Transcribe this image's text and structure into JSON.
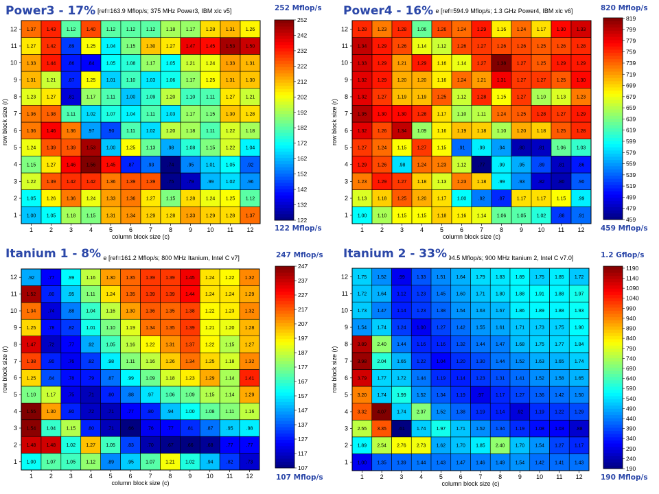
{
  "panels": [
    {
      "title": "Power3 - 17%",
      "subtitle": "rofile [ref=163.9 Mflop/s; 375 MHz Power3, IBM xlc v5]",
      "top_label": "252 Mflop/s",
      "bottom_label": "122 Mflop/s"
    },
    {
      "title": "Power4 - 16%",
      "subtitle": "rofile [ref=594.9 Mflop/s; 1.3 GHz Power4, IBM xlc v6]",
      "top_label": "820 Mflop/s",
      "bottom_label": "459 Mflop/s"
    },
    {
      "title": "Itanium 1 - 8%",
      "subtitle": "rofile [ref=161.2 Mflop/s; 800 MHz Itanium, Intel C v7]",
      "top_label": "247 Mflop/s",
      "bottom_label": "107 Mflop/s"
    },
    {
      "title": "Itanium 2 - 33%",
      "subtitle": "ref=294.5 Mflop/s; 900 MHz Itanium 2, Intel C v7.0]",
      "top_label": "1.2 Gflop/s",
      "bottom_label": "190 Mflop/s"
    }
  ],
  "chart_data": [
    {
      "type": "heatmap",
      "title": "Power3 - 17%",
      "xlabel": "column block size (c)",
      "ylabel": "row block size (r)",
      "x": [
        1,
        2,
        3,
        4,
        5,
        6,
        7,
        8,
        9,
        10,
        11,
        12
      ],
      "y": [
        1,
        2,
        3,
        4,
        5,
        6,
        7,
        8,
        9,
        10,
        11,
        12
      ],
      "colorbar_ticks": [
        122,
        132,
        142,
        152,
        162,
        172,
        182,
        192,
        202,
        212,
        222,
        232,
        242,
        252
      ],
      "colorbar_range": [
        122,
        252
      ],
      "values": [
        [
          1.0,
          1.05,
          1.18,
          1.15,
          1.31,
          1.34,
          1.29,
          1.28,
          1.33,
          1.29,
          1.28,
          1.37
        ],
        [
          1.05,
          1.26,
          1.36,
          1.24,
          1.33,
          1.36,
          1.27,
          1.15,
          1.28,
          1.24,
          1.25,
          1.12
        ],
        [
          1.22,
          1.39,
          1.42,
          1.42,
          1.36,
          1.39,
          1.39,
          0.75,
          0.79,
          0.99,
          1.02,
          0.96
        ],
        [
          1.15,
          1.27,
          1.46,
          1.56,
          1.45,
          0.87,
          0.93,
          0.74,
          0.95,
          1.01,
          1.05,
          0.92
        ],
        [
          1.24,
          1.39,
          1.39,
          1.53,
          1.0,
          1.25,
          1.13,
          0.98,
          1.08,
          1.15,
          1.22,
          1.04
        ],
        [
          1.36,
          1.46,
          1.36,
          0.97,
          0.9,
          1.11,
          1.02,
          1.2,
          1.18,
          1.11,
          1.22,
          1.18
        ],
        [
          1.36,
          1.38,
          1.11,
          1.02,
          1.07,
          1.04,
          1.11,
          1.03,
          1.17,
          1.15,
          1.3,
          1.28
        ],
        [
          1.23,
          1.27,
          0.81,
          1.17,
          1.11,
          1.0,
          1.09,
          1.2,
          1.1,
          1.11,
          1.27,
          1.21
        ],
        [
          1.31,
          1.21,
          0.87,
          1.25,
          1.01,
          1.1,
          1.03,
          1.06,
          1.17,
          1.25,
          1.31,
          1.3
        ],
        [
          1.33,
          1.44,
          0.86,
          0.84,
          1.05,
          1.08,
          1.17,
          1.05,
          1.21,
          1.24,
          1.33,
          1.31
        ],
        [
          1.27,
          1.42,
          0.89,
          1.25,
          1.04,
          1.15,
          1.3,
          1.27,
          1.47,
          1.45,
          1.53,
          1.5
        ],
        [
          1.37,
          1.43,
          1.12,
          1.4,
          1.12,
          1.12,
          1.12,
          1.18,
          1.17,
          1.28,
          1.31,
          1.26
        ]
      ]
    },
    {
      "type": "heatmap",
      "title": "Power4 - 16%",
      "xlabel": "column block size (c)",
      "ylabel": "row block size (r)",
      "x": [
        1,
        2,
        3,
        4,
        5,
        6,
        7,
        8,
        9,
        10,
        11,
        12
      ],
      "y": [
        1,
        2,
        3,
        4,
        5,
        6,
        7,
        8,
        9,
        10,
        11,
        12
      ],
      "colorbar_ticks": [
        459,
        479,
        499,
        519,
        539,
        559,
        579,
        599,
        619,
        639,
        659,
        679,
        699,
        719,
        739,
        759,
        779,
        799,
        819
      ],
      "colorbar_range": [
        459,
        820
      ],
      "values": [
        [
          1.0,
          1.1,
          1.15,
          1.15,
          1.18,
          1.16,
          1.14,
          1.06,
          1.05,
          1.02,
          0.88,
          0.91
        ],
        [
          1.13,
          1.18,
          1.25,
          1.2,
          1.17,
          1.0,
          0.92,
          0.87,
          1.17,
          1.17,
          1.15,
          0.99
        ],
        [
          1.23,
          1.29,
          1.27,
          1.18,
          1.13,
          1.23,
          1.18,
          0.99,
          0.93,
          0.82,
          0.8,
          0.9
        ],
        [
          1.29,
          1.26,
          0.98,
          1.24,
          1.23,
          1.12,
          0.77,
          0.99,
          0.95,
          0.89,
          0.81,
          0.86
        ],
        [
          1.27,
          1.24,
          1.15,
          1.27,
          1.15,
          0.91,
          0.99,
          0.94,
          0.8,
          0.81,
          1.06,
          1.03
        ],
        [
          1.32,
          1.26,
          1.34,
          1.09,
          1.16,
          1.19,
          1.18,
          1.1,
          1.2,
          1.18,
          1.25,
          1.28
        ],
        [
          1.35,
          1.3,
          1.3,
          1.28,
          1.17,
          1.1,
          1.11,
          1.24,
          1.25,
          1.28,
          1.27,
          1.29
        ],
        [
          1.32,
          1.27,
          1.19,
          1.19,
          1.25,
          1.12,
          1.28,
          1.15,
          1.27,
          1.1,
          1.13,
          1.23
        ],
        [
          1.32,
          1.29,
          1.2,
          1.2,
          1.16,
          1.24,
          1.21,
          1.31,
          1.27,
          1.27,
          1.25,
          1.3
        ],
        [
          1.33,
          1.29,
          1.21,
          1.29,
          1.16,
          1.14,
          1.27,
          1.38,
          1.27,
          1.25,
          1.29,
          1.29
        ],
        [
          1.34,
          1.29,
          1.26,
          1.14,
          1.12,
          1.26,
          1.27,
          1.26,
          1.26,
          1.25,
          1.26,
          1.28
        ],
        [
          1.28,
          1.23,
          1.28,
          1.06,
          1.26,
          1.24,
          1.29,
          1.16,
          1.24,
          1.17,
          1.3,
          1.33
        ]
      ]
    },
    {
      "type": "heatmap",
      "title": "Itanium 1 - 8%",
      "xlabel": "column block size (c)",
      "ylabel": "row block size (r)",
      "x": [
        1,
        2,
        3,
        4,
        5,
        6,
        7,
        8,
        9,
        10,
        11,
        12
      ],
      "y": [
        1,
        2,
        3,
        4,
        5,
        6,
        7,
        8,
        9,
        10,
        11,
        12
      ],
      "colorbar_ticks": [
        107,
        117,
        127,
        137,
        147,
        157,
        167,
        177,
        187,
        197,
        207,
        217,
        227,
        237,
        247
      ],
      "colorbar_range": [
        107,
        247
      ],
      "values": [
        [
          1.0,
          1.07,
          1.05,
          1.12,
          0.89,
          0.95,
          1.07,
          1.21,
          1.02,
          0.94,
          0.82,
          0.73
        ],
        [
          1.48,
          1.48,
          1.02,
          1.27,
          1.05,
          0.83,
          0.7,
          0.67,
          0.66,
          0.68,
          0.77,
          0.77
        ],
        [
          1.54,
          1.04,
          1.15,
          0.8,
          0.71,
          0.66,
          0.76,
          0.77,
          0.81,
          0.87,
          0.95,
          0.98
        ],
        [
          1.55,
          1.3,
          0.8,
          0.72,
          0.71,
          0.77,
          0.8,
          0.94,
          1.0,
          1.08,
          1.11,
          1.16
        ],
        [
          1.1,
          1.17,
          0.75,
          0.71,
          0.8,
          0.88,
          0.97,
          1.06,
          1.09,
          1.15,
          1.14,
          1.29
        ],
        [
          1.25,
          0.84,
          0.78,
          0.79,
          0.87,
          0.99,
          1.09,
          1.18,
          1.23,
          1.29,
          1.14,
          1.41
        ],
        [
          1.38,
          0.8,
          0.76,
          0.82,
          0.98,
          1.11,
          1.16,
          1.26,
          1.34,
          1.25,
          1.18,
          1.32
        ],
        [
          1.47,
          0.72,
          0.77,
          0.92,
          1.05,
          1.16,
          1.22,
          1.31,
          1.37,
          1.22,
          1.15,
          1.27
        ],
        [
          1.25,
          0.78,
          0.82,
          1.01,
          1.1,
          1.19,
          1.34,
          1.35,
          1.39,
          1.21,
          1.2,
          1.28
        ],
        [
          1.34,
          0.74,
          0.88,
          1.04,
          1.16,
          1.3,
          1.36,
          1.35,
          1.38,
          1.22,
          1.23,
          1.32
        ],
        [
          1.52,
          0.8,
          0.95,
          1.11,
          1.24,
          1.35,
          1.39,
          1.39,
          1.44,
          1.24,
          1.24,
          1.29
        ],
        [
          0.92,
          0.77,
          0.99,
          1.16,
          1.3,
          1.35,
          1.39,
          1.39,
          1.45,
          1.24,
          1.22,
          1.32
        ]
      ]
    },
    {
      "type": "heatmap",
      "title": "Itanium 2 - 33%",
      "xlabel": "column block size (c)",
      "ylabel": "row block size (r)",
      "x": [
        1,
        2,
        3,
        4,
        5,
        6,
        7,
        8,
        9,
        10,
        11,
        12
      ],
      "y": [
        1,
        2,
        3,
        4,
        5,
        6,
        7,
        8,
        9,
        10,
        11,
        12
      ],
      "colorbar_ticks": [
        190,
        240,
        290,
        340,
        390,
        440,
        490,
        540,
        590,
        640,
        690,
        740,
        790,
        840,
        890,
        940,
        990,
        1040,
        1090,
        1140,
        1190
      ],
      "colorbar_range": [
        190,
        1200
      ],
      "values": [
        [
          1.0,
          1.35,
          1.39,
          1.44,
          1.43,
          1.47,
          1.46,
          1.49,
          1.54,
          1.42,
          1.41,
          1.43
        ],
        [
          1.89,
          2.54,
          2.76,
          2.73,
          1.62,
          1.7,
          1.85,
          2.4,
          1.7,
          1.54,
          1.27,
          1.17
        ],
        [
          2.55,
          3.35,
          0.61,
          1.74,
          1.97,
          1.71,
          1.52,
          1.34,
          1.19,
          1.08,
          1.03,
          0.88
        ],
        [
          3.32,
          4.07,
          1.74,
          2.37,
          1.52,
          1.38,
          1.19,
          1.14,
          0.92,
          1.19,
          1.22,
          1.29
        ],
        [
          3.2,
          1.74,
          1.99,
          1.52,
          1.34,
          1.19,
          0.97,
          1.17,
          1.27,
          1.36,
          1.42,
          1.5
        ],
        [
          3.79,
          1.77,
          1.72,
          1.44,
          1.19,
          1.14,
          1.23,
          1.31,
          1.41,
          1.52,
          1.58,
          1.65
        ],
        [
          3.98,
          2.04,
          1.65,
          1.22,
          1.04,
          1.2,
          1.3,
          1.44,
          1.52,
          1.63,
          1.65,
          1.74
        ],
        [
          3.89,
          2.4,
          1.44,
          1.16,
          1.16,
          1.32,
          1.44,
          1.47,
          1.68,
          1.75,
          1.77,
          1.84
        ],
        [
          1.54,
          1.74,
          1.24,
          1.0,
          1.27,
          1.42,
          1.55,
          1.61,
          1.71,
          1.73,
          1.75,
          1.9
        ],
        [
          1.73,
          1.47,
          1.14,
          1.23,
          1.38,
          1.54,
          1.63,
          1.67,
          1.86,
          1.89,
          1.88,
          1.93
        ],
        [
          1.72,
          1.64,
          1.12,
          1.23,
          1.45,
          1.6,
          1.71,
          1.8,
          1.88,
          1.91,
          1.88,
          1.97
        ],
        [
          1.75,
          1.52,
          0.99,
          1.33,
          1.51,
          1.64,
          1.79,
          1.83,
          1.89,
          1.75,
          1.85,
          1.72
        ]
      ]
    }
  ]
}
